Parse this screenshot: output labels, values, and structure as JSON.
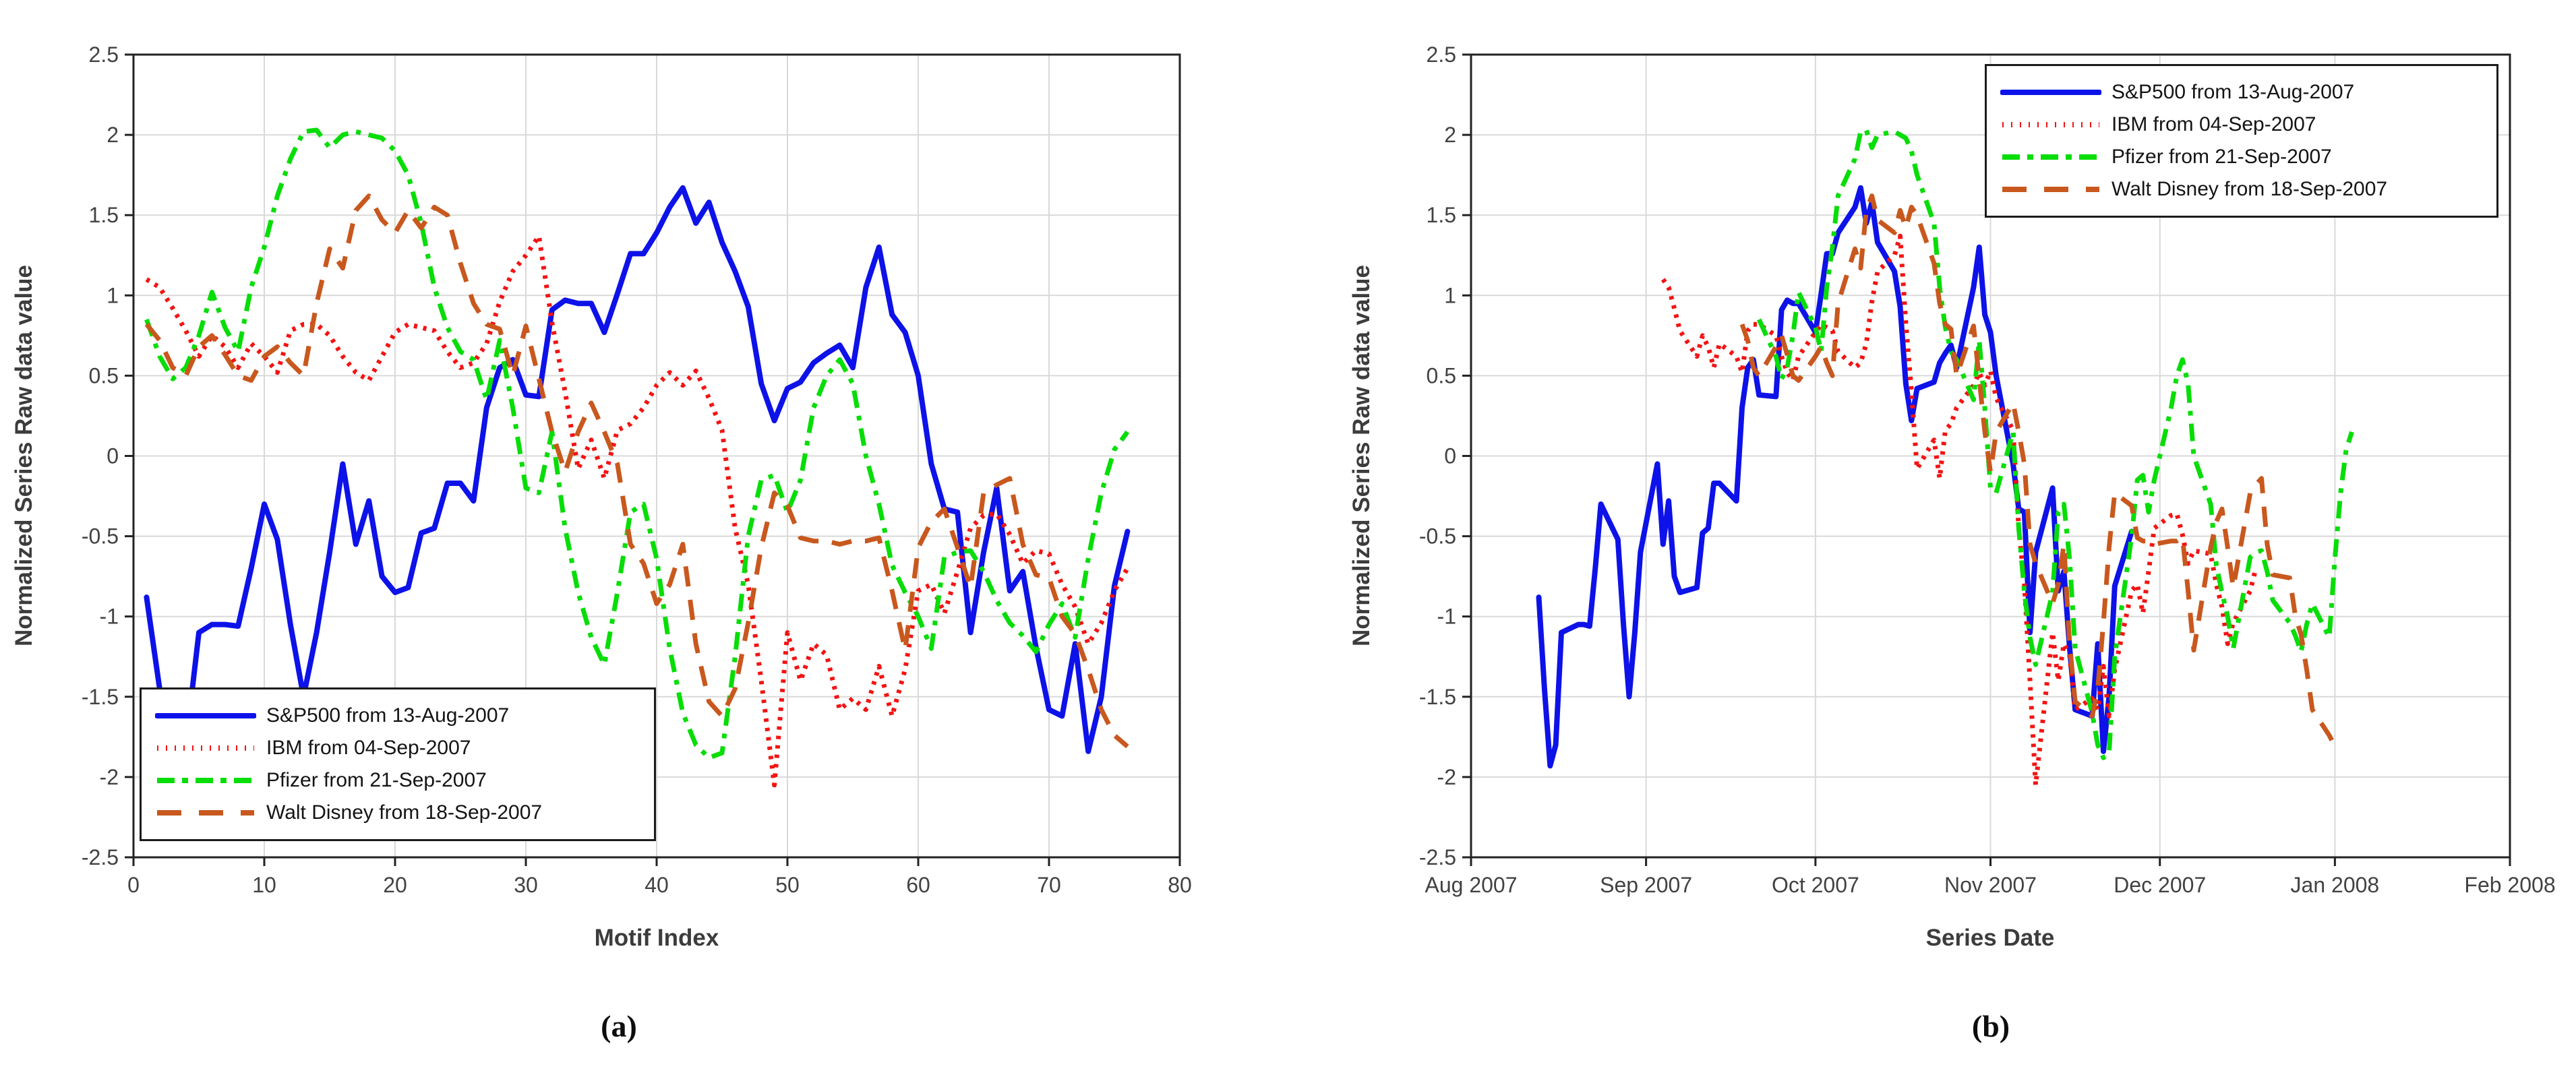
{
  "figure": {
    "background": "#ffffff",
    "grid_color": "#d9d9d9",
    "axis_color": "#222222",
    "tick_label_color": "#424242",
    "tick_label_size": 32
  },
  "series": [
    {
      "name": "sp500",
      "legend_label": "S&P500 from 13-Aug-2007",
      "color": "#0d12e8",
      "style": "solid",
      "start_date": "2007-08-13",
      "values": [
        -0.88,
        -1.45,
        -1.93,
        -1.8,
        -1.1,
        -1.05,
        -1.05,
        -1.06,
        -0.7,
        -0.3,
        -0.52,
        -1.05,
        -1.5,
        -1.1,
        -0.6,
        -0.05,
        -0.55,
        -0.28,
        -0.75,
        -0.85,
        -0.82,
        -0.48,
        -0.45,
        -0.17,
        -0.17,
        -0.28,
        0.3,
        0.55,
        0.6,
        0.38,
        0.37,
        0.91,
        0.97,
        0.95,
        0.95,
        0.77,
        1.01,
        1.26,
        1.26,
        1.39,
        1.55,
        1.67,
        1.45,
        1.58,
        1.33,
        1.15,
        0.93,
        0.45,
        0.22,
        0.42,
        0.46,
        0.58,
        0.64,
        0.69,
        0.55,
        1.05,
        1.3,
        0.88,
        0.77,
        0.5,
        -0.05,
        -0.33,
        -0.35,
        -1.1,
        -0.6,
        -0.2,
        -0.84,
        -0.72,
        -1.19,
        -1.58,
        -1.62,
        -1.17,
        -1.84,
        -1.5,
        -0.81,
        -0.47
      ]
    },
    {
      "name": "ibm",
      "legend_label": "IBM from 04-Sep-2007",
      "color": "#f31313",
      "style": "dotted",
      "start_date": "2007-09-04",
      "values": [
        1.1,
        1.05,
        0.92,
        0.78,
        0.62,
        0.75,
        0.68,
        0.55,
        0.7,
        0.62,
        0.52,
        0.78,
        0.82,
        0.82,
        0.75,
        0.62,
        0.52,
        0.47,
        0.62,
        0.77,
        0.82,
        0.8,
        0.78,
        0.65,
        0.55,
        0.58,
        0.7,
        0.96,
        1.15,
        1.25,
        1.37,
        0.83,
        0.4,
        -0.08,
        0.1,
        -0.14,
        0.16,
        0.2,
        0.3,
        0.44,
        0.52,
        0.44,
        0.53,
        0.36,
        0.16,
        -0.45,
        -0.8,
        -1.4,
        -2.05,
        -1.1,
        -1.4,
        -1.17,
        -1.24,
        -1.58,
        -1.51,
        -1.58,
        -1.31,
        -1.62,
        -1.33,
        -0.84,
        -0.8,
        -0.98,
        -0.72,
        -0.45,
        -0.37,
        -0.36,
        -0.49,
        -0.67,
        -0.59,
        -0.61,
        -0.8,
        -0.94,
        -1.17,
        -1.04,
        -0.84,
        -0.7
      ]
    },
    {
      "name": "pfizer",
      "legend_label": "Pfizer from 21-Sep-2007",
      "color": "#07dd07",
      "style": "dashdot",
      "start_date": "2007-09-21",
      "values": [
        0.85,
        0.62,
        0.48,
        0.55,
        0.75,
        1.02,
        0.8,
        0.65,
        1.05,
        1.3,
        1.62,
        1.85,
        2.02,
        2.03,
        1.92,
        2.0,
        2.02,
        2.0,
        1.98,
        1.9,
        1.75,
        1.45,
        1.05,
        0.8,
        0.65,
        0.6,
        0.35,
        0.72,
        0.3,
        -0.2,
        -0.23,
        0.15,
        -0.45,
        -0.85,
        -1.13,
        -1.3,
        -0.85,
        -0.35,
        -0.3,
        -0.64,
        -1.2,
        -1.6,
        -1.8,
        -1.88,
        -1.85,
        -1.25,
        -0.5,
        -0.15,
        -0.12,
        -0.35,
        -0.15,
        0.3,
        0.5,
        0.6,
        0.45,
        0.0,
        -0.3,
        -0.68,
        -0.85,
        -1.0,
        -1.2,
        -0.63,
        -0.6,
        -0.59,
        -0.72,
        -0.9,
        -1.04,
        -1.12,
        -1.22,
        -1.05,
        -0.92,
        -1.13,
        -0.64,
        -0.23,
        0.04,
        0.15
      ]
    },
    {
      "name": "disney",
      "legend_label": "Walt Disney from 18-Sep-2007",
      "color": "#c8581e",
      "style": "dashed",
      "start_date": "2007-09-18",
      "values": [
        0.82,
        0.72,
        0.55,
        0.5,
        0.68,
        0.75,
        0.63,
        0.5,
        0.47,
        0.62,
        0.68,
        0.58,
        0.5,
        0.95,
        1.29,
        1.17,
        1.53,
        1.62,
        1.47,
        1.39,
        1.53,
        1.42,
        1.55,
        1.5,
        1.2,
        0.95,
        0.82,
        0.79,
        0.5,
        0.81,
        0.48,
        0.15,
        -0.1,
        0.15,
        0.33,
        0.15,
        -0.05,
        -0.55,
        -0.67,
        -0.92,
        -0.8,
        -0.55,
        -1.17,
        -1.53,
        -1.62,
        -1.45,
        -1.04,
        -0.57,
        -0.23,
        -0.31,
        -0.51,
        -0.53,
        -0.53,
        -0.55,
        -0.53,
        -0.53,
        -0.51,
        -0.84,
        -1.21,
        -0.57,
        -0.41,
        -0.33,
        -0.57,
        -0.82,
        -0.23,
        -0.18,
        -0.14,
        -0.55,
        -0.74,
        -0.76,
        -1.0,
        -1.11,
        -1.33,
        -1.58,
        -1.74,
        -1.81
      ]
    }
  ],
  "chart_data": [
    {
      "id": "a",
      "type": "line",
      "title": "",
      "xlabel": "Motif Index",
      "ylabel": "Normalized Series Raw data value",
      "caption": "(a)",
      "x_mode": "index",
      "xlim": [
        0,
        80
      ],
      "ylim": [
        -2.5,
        2.5
      ],
      "xticks": [
        0,
        10,
        20,
        30,
        40,
        50,
        60,
        70,
        80
      ],
      "yticks": [
        2.5,
        2,
        1.5,
        1,
        0.5,
        0,
        -0.5,
        -1,
        -1.5,
        -2,
        -2.5
      ],
      "grid": true,
      "legend_position": "bottom-left"
    },
    {
      "id": "b",
      "type": "line",
      "title": "",
      "xlabel": "Series Date",
      "ylabel": "Normalized Series Raw data value",
      "caption": "(b)",
      "x_mode": "date",
      "xlim_dates": [
        "2007-08-01",
        "2008-02-01"
      ],
      "xlim_days": [
        0,
        184
      ],
      "xtick_days": [
        0,
        31,
        61,
        92,
        122,
        153,
        184
      ],
      "xtick_labels": [
        "Aug 2007",
        "Sep 2007",
        "Oct 2007",
        "Nov 2007",
        "Dec 2007",
        "Jan 2008",
        "Feb 2008"
      ],
      "ylim": [
        -2.5,
        2.5
      ],
      "yticks": [
        2.5,
        2,
        1.5,
        1,
        0.5,
        0,
        -0.5,
        -1,
        -1.5,
        -2,
        -2.5
      ],
      "grid": true,
      "legend_position": "top-right"
    }
  ]
}
